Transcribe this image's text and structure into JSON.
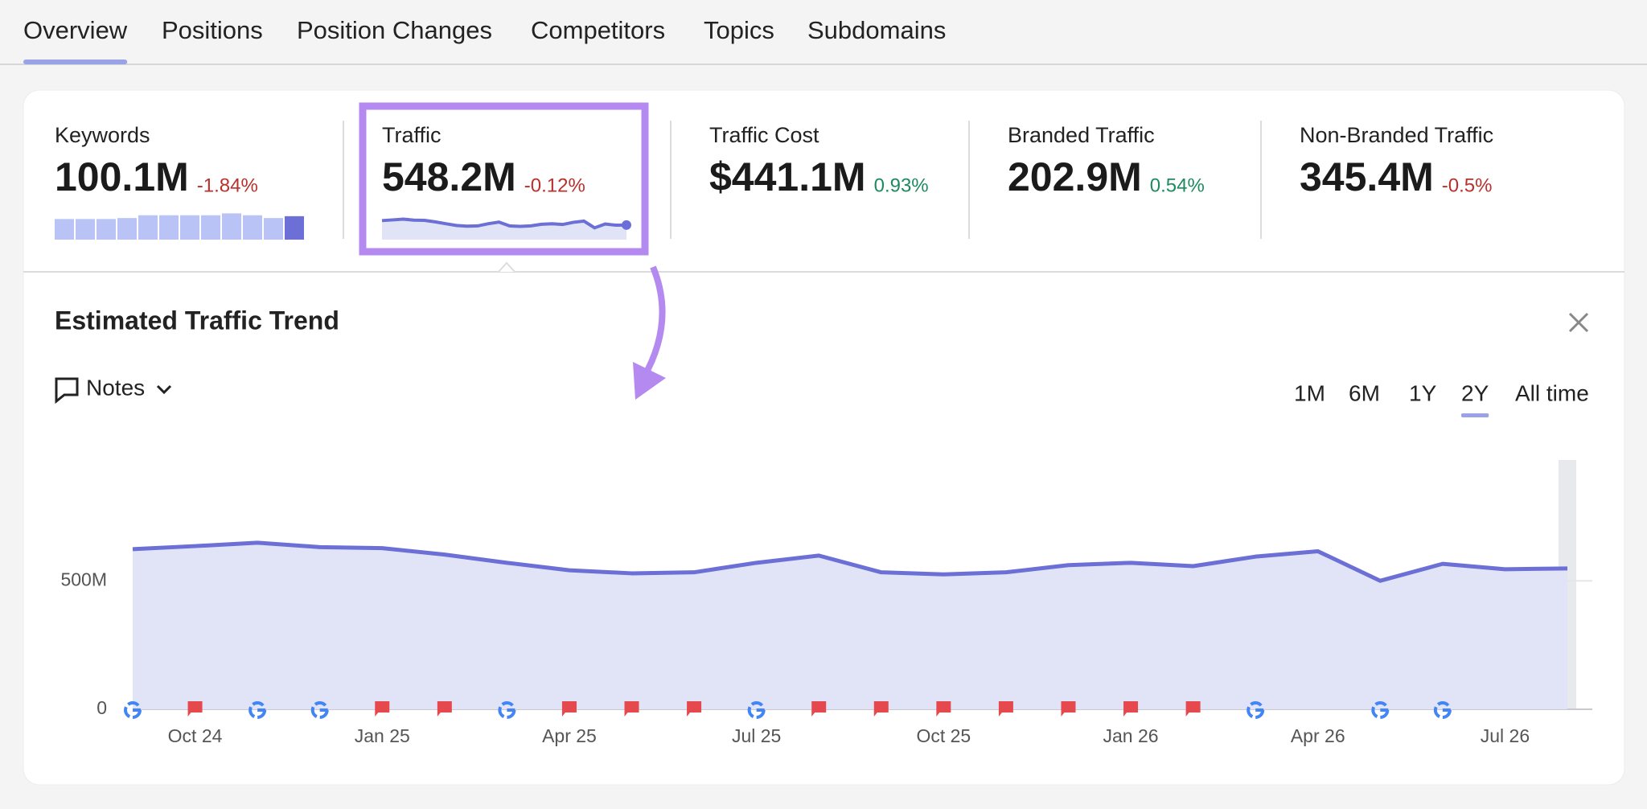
{
  "tabs": [
    "Overview",
    "Positions",
    "Position Changes",
    "Competitors",
    "Topics",
    "Subdomains"
  ],
  "metrics": [
    {
      "label": "Keywords",
      "value": "100.1M",
      "change": "-1.84%",
      "spark": [
        92,
        92,
        92,
        93,
        96,
        96,
        96,
        96,
        98,
        96,
        93,
        95
      ],
      "spark_ylim": [
        70,
        100
      ]
    },
    {
      "label": "Traffic",
      "value": "548.2M",
      "change": "-0.12%",
      "spark_ylim": [
        300,
        750
      ]
    },
    {
      "label": "Traffic Cost",
      "value": "$441.1M",
      "change": "0.93%"
    },
    {
      "label": "Branded Traffic",
      "value": "202.9M",
      "change": "0.54%"
    },
    {
      "label": "Non-Branded Traffic",
      "value": "345.4M",
      "change": "-0.5%"
    }
  ],
  "panel": {
    "title": "Estimated Traffic Trend",
    "notes": "Notes",
    "ranges": [
      "1M",
      "6M",
      "1Y",
      "2Y",
      "All time"
    ],
    "active_range": 3
  },
  "chart_data": {
    "type": "line",
    "color": "#6b6fd6",
    "area_color": "#e1e3f7",
    "grid": true,
    "categories": [
      null,
      "Oct 24",
      null,
      null,
      "Jan 25",
      null,
      null,
      "Apr 25",
      null,
      null,
      "Jul 25",
      null,
      null,
      "Oct 25",
      null,
      null,
      "Jan 26",
      null,
      null,
      "Apr 26",
      null,
      null,
      "Jul 26",
      null
    ],
    "values": [
      623,
      635,
      648,
      631,
      627,
      602,
      570,
      541,
      529,
      533,
      570,
      598,
      533,
      525,
      533,
      561,
      570,
      557,
      594,
      615,
      500,
      566,
      545,
      548
    ],
    "ylim": [
      0,
      970
    ],
    "yticks": [
      0,
      {
        "value": 500,
        "label": "500M"
      }
    ]
  }
}
